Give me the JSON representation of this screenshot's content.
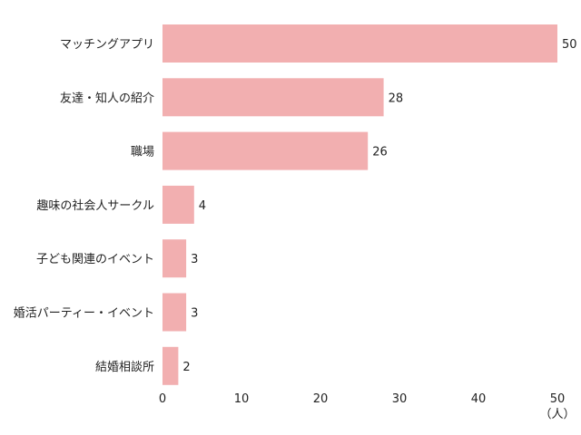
{
  "chart_data": {
    "type": "bar",
    "orientation": "horizontal",
    "categories": [
      "マッチングアプリ",
      "友達・知人の紹介",
      "職場",
      "趣味の社会人サークル",
      "子ども関連のイベント",
      "婚活パーティー・イベント",
      "結婚相談所"
    ],
    "values": [
      50,
      28,
      26,
      4,
      3,
      3,
      2
    ],
    "value_labels": [
      "50",
      "28",
      "26",
      "4",
      "3",
      "3",
      "2"
    ],
    "xlim": [
      0,
      50
    ],
    "x_ticks": [
      0,
      10,
      20,
      30,
      40,
      50
    ],
    "x_tick_labels": [
      "0",
      "10",
      "20",
      "30",
      "40",
      "50"
    ],
    "x_unit": "（人）",
    "title": "",
    "xlabel": "",
    "ylabel": "",
    "grid": false,
    "bar_color": "#f2afb0"
  }
}
